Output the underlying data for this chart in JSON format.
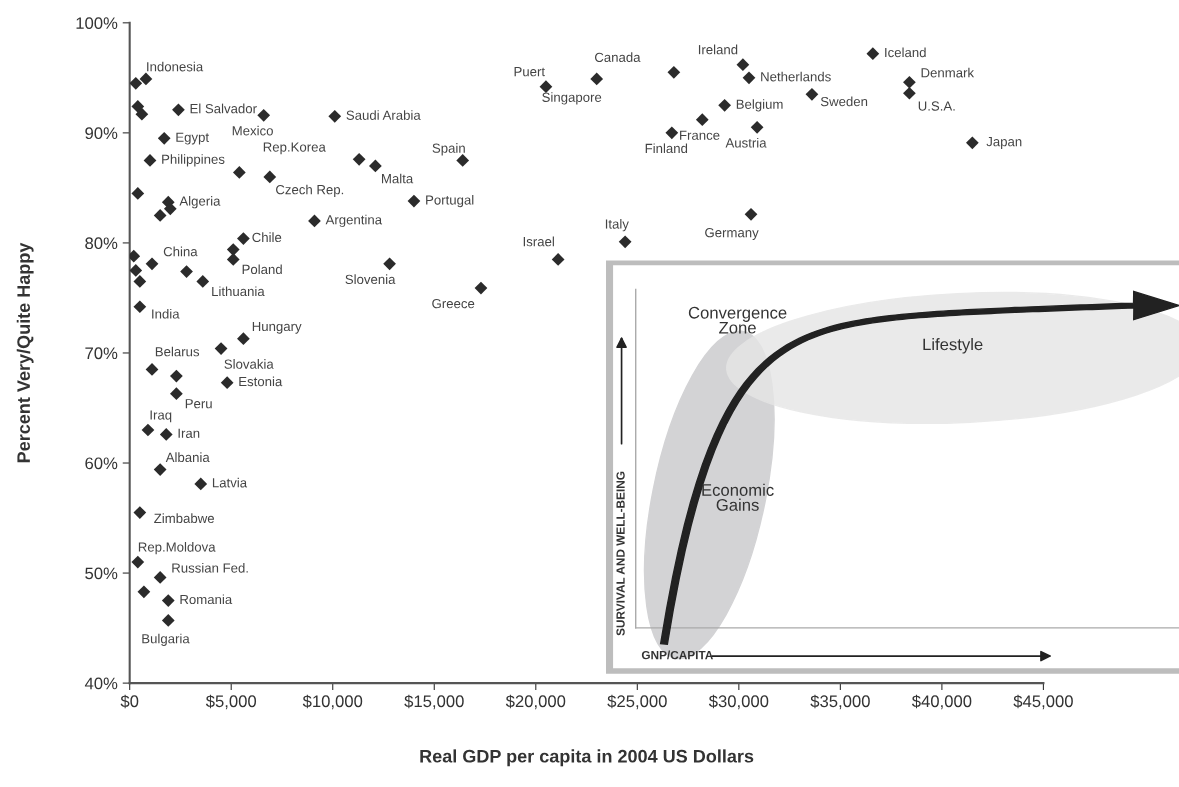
{
  "chart_data": [
    {
      "type": "scatter",
      "xlabel": "Real GDP per capita in 2004 US Dollars",
      "ylabel": "Percent Very/Quite Happy",
      "xlim": [
        0,
        45000
      ],
      "ylim": [
        40,
        100
      ],
      "xticks": [
        {
          "value": 0,
          "label": "$0"
        },
        {
          "value": 5000,
          "label": "$5,000"
        },
        {
          "value": 10000,
          "label": "$10,000"
        },
        {
          "value": 15000,
          "label": "$15,000"
        },
        {
          "value": 20000,
          "label": "$20,000"
        },
        {
          "value": 25000,
          "label": "$25,000"
        },
        {
          "value": 30000,
          "label": "$30,000"
        },
        {
          "value": 35000,
          "label": "$35,000"
        },
        {
          "value": 40000,
          "label": "$40,000"
        },
        {
          "value": 45000,
          "label": "$45,000"
        }
      ],
      "yticks": [
        {
          "value": 40,
          "label": "40%"
        },
        {
          "value": 50,
          "label": "50%"
        },
        {
          "value": 60,
          "label": "60%"
        },
        {
          "value": 70,
          "label": "70%"
        },
        {
          "value": 80,
          "label": "80%"
        },
        {
          "value": 90,
          "label": "90%"
        },
        {
          "value": 100,
          "label": "100%"
        }
      ],
      "grid": false,
      "marker": "diamond",
      "series": [
        {
          "color": "#2b2b2b",
          "x": [
            300,
            800,
            400,
            600,
            2400,
            6600,
            10100,
            1700,
            1000,
            5400,
            6900,
            11300,
            12100,
            16400,
            400,
            1900,
            2000,
            1500,
            14000,
            9100,
            5600,
            5100,
            5100,
            200,
            1100,
            300,
            500,
            2800,
            3600,
            12800,
            17300,
            500,
            5600,
            4500,
            1100,
            2300,
            4800,
            2300,
            900,
            1800,
            1500,
            3500,
            500,
            400,
            1500,
            700,
            1900,
            1900,
            20500,
            23000,
            26800,
            30200,
            30500,
            29300,
            28200,
            26700,
            30900,
            24400,
            21100,
            30600,
            36600,
            33600,
            38400,
            38400,
            41500
          ],
          "values": [
            94.5,
            94.9,
            92.4,
            91.7,
            92.1,
            91.6,
            91.5,
            89.5,
            87.5,
            86.4,
            86.0,
            87.6,
            87.0,
            87.5,
            84.5,
            83.7,
            83.1,
            82.5,
            83.8,
            82.0,
            80.4,
            79.4,
            78.5,
            78.8,
            78.1,
            77.5,
            76.5,
            77.4,
            76.5,
            78.1,
            75.9,
            74.2,
            71.3,
            70.4,
            68.5,
            67.9,
            67.3,
            66.3,
            63.0,
            62.6,
            59.4,
            58.1,
            55.5,
            51.0,
            49.6,
            48.3,
            47.5,
            45.7,
            94.2,
            94.9,
            95.5,
            96.2,
            95.0,
            92.5,
            91.2,
            90.0,
            90.5,
            80.1,
            78.5,
            82.6,
            97.2,
            93.5,
            94.6,
            93.6,
            89.1
          ]
        }
      ],
      "annotations": [
        {
          "text": "Indonesia",
          "x": 800,
          "y": 94.9
        },
        {
          "text": "El Salvador",
          "x": 2400,
          "y": 92.1
        },
        {
          "text": "Mexico",
          "x": 6600,
          "y": 91.6
        },
        {
          "text": "Saudi Arabia",
          "x": 10100,
          "y": 91.5
        },
        {
          "text": "Egypt",
          "x": 1700,
          "y": 89.5
        },
        {
          "text": "Philippines",
          "x": 1000,
          "y": 87.5
        },
        {
          "text": "Czech Rep.",
          "x": 6900,
          "y": 86.0
        },
        {
          "text": "Rep.Korea",
          "x": 11300,
          "y": 87.6
        },
        {
          "text": "Malta",
          "x": 12100,
          "y": 87.0
        },
        {
          "text": "Spain",
          "x": 16400,
          "y": 87.5
        },
        {
          "text": "Algeria",
          "x": 1900,
          "y": 83.7
        },
        {
          "text": "Portugal",
          "x": 14000,
          "y": 83.8
        },
        {
          "text": "Argentina",
          "x": 9100,
          "y": 82.0
        },
        {
          "text": "Chile",
          "x": 5600,
          "y": 80.4
        },
        {
          "text": "Poland",
          "x": 5100,
          "y": 78.5
        },
        {
          "text": "China",
          "x": 1100,
          "y": 78.1
        },
        {
          "text": "Lithuania",
          "x": 3600,
          "y": 76.5
        },
        {
          "text": "Slovenia",
          "x": 12800,
          "y": 78.1
        },
        {
          "text": "Greece",
          "x": 17300,
          "y": 75.9
        },
        {
          "text": "India",
          "x": 500,
          "y": 74.2
        },
        {
          "text": "Hungary",
          "x": 5600,
          "y": 71.3
        },
        {
          "text": "Slovakia",
          "x": 4500,
          "y": 70.4
        },
        {
          "text": "Belarus",
          "x": 1100,
          "y": 68.5
        },
        {
          "text": "Estonia",
          "x": 4800,
          "y": 67.3
        },
        {
          "text": "Peru",
          "x": 2300,
          "y": 66.3
        },
        {
          "text": "Iraq",
          "x": 900,
          "y": 63.0
        },
        {
          "text": "Iran",
          "x": 1800,
          "y": 62.6
        },
        {
          "text": "Albania",
          "x": 1500,
          "y": 59.4
        },
        {
          "text": "Latvia",
          "x": 3500,
          "y": 58.1
        },
        {
          "text": "Zimbabwe",
          "x": 500,
          "y": 55.5
        },
        {
          "text": "Rep.Moldova",
          "x": 400,
          "y": 51.0
        },
        {
          "text": "Russian Fed.",
          "x": 1500,
          "y": 49.6
        },
        {
          "text": "Romania",
          "x": 1900,
          "y": 47.5
        },
        {
          "text": "Bulgaria",
          "x": 1900,
          "y": 45.7
        },
        {
          "text": "Puert",
          "x": 20500,
          "y": 94.2
        },
        {
          "text": "Singapore",
          "x": 23000,
          "y": 94.9
        },
        {
          "text": "Canada",
          "x": 26800,
          "y": 95.5
        },
        {
          "text": "Ireland",
          "x": 30200,
          "y": 96.2
        },
        {
          "text": "Netherlands",
          "x": 30500,
          "y": 95.0
        },
        {
          "text": "Belgium",
          "x": 29300,
          "y": 92.5
        },
        {
          "text": "France",
          "x": 28200,
          "y": 91.2
        },
        {
          "text": "Finland",
          "x": 26700,
          "y": 90.0
        },
        {
          "text": "Austria",
          "x": 30900,
          "y": 90.5
        },
        {
          "text": "Italy",
          "x": 24400,
          "y": 80.1
        },
        {
          "text": "Israel",
          "x": 21100,
          "y": 78.5
        },
        {
          "text": "Germany",
          "x": 30600,
          "y": 82.6
        },
        {
          "text": "Iceland",
          "x": 36600,
          "y": 97.2
        },
        {
          "text": "Sweden",
          "x": 33600,
          "y": 93.5
        },
        {
          "text": "Denmark",
          "x": 38400,
          "y": 94.6
        },
        {
          "text": "U.S.A.",
          "x": 38400,
          "y": 93.6
        },
        {
          "text": "Japan",
          "x": 41500,
          "y": 89.1
        }
      ]
    },
    {
      "type": "other",
      "xlabel": "GNP/CAPITA",
      "ylabel": "SURVIVAL AND WELL-BEING",
      "annotations": [
        "Convergence\nZone",
        "Lifestyle",
        "Economic\nGains"
      ]
    }
  ]
}
